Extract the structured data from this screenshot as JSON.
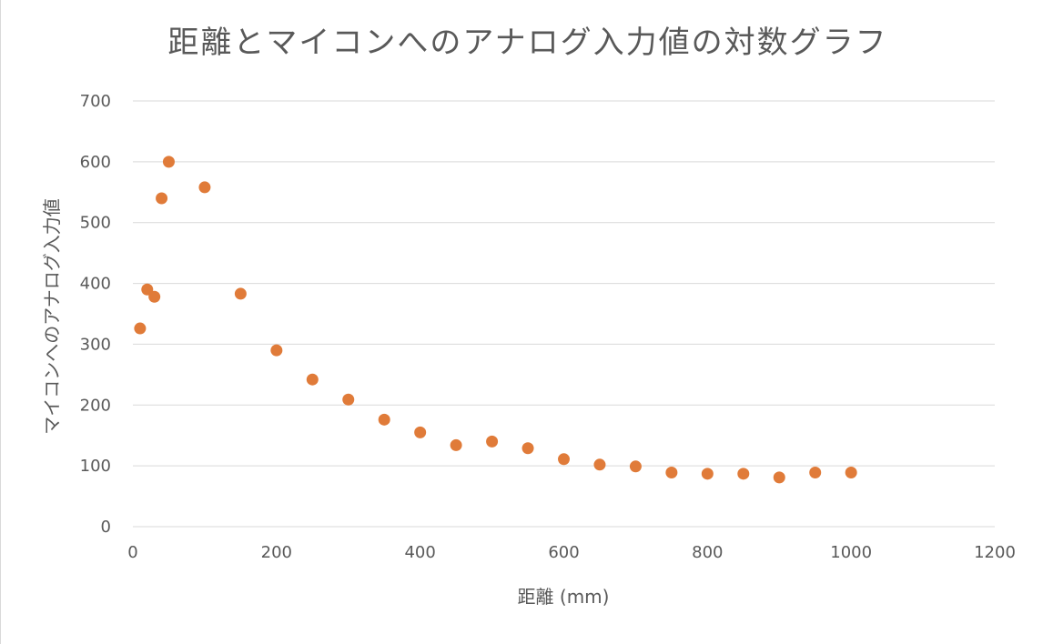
{
  "chart_data": {
    "type": "scatter",
    "title": "距離とマイコンへのアナログ入力値の対数グラフ",
    "xlabel": "距離 (mm)",
    "ylabel": "マイコンへのアナログ入力値",
    "xlim": [
      0,
      1200
    ],
    "ylim": [
      0,
      700
    ],
    "xticks": [
      0,
      200,
      400,
      600,
      800,
      1000,
      1200
    ],
    "yticks": [
      0,
      100,
      200,
      300,
      400,
      500,
      600,
      700
    ],
    "grid": "horizontal",
    "marker_color": "#E07B39",
    "x": [
      10,
      20,
      30,
      40,
      50,
      100,
      150,
      200,
      250,
      300,
      350,
      400,
      450,
      500,
      550,
      600,
      650,
      700,
      750,
      800,
      850,
      900,
      950,
      1000
    ],
    "y": [
      326,
      390,
      378,
      540,
      600,
      558,
      383,
      290,
      242,
      209,
      176,
      155,
      134,
      140,
      129,
      111,
      102,
      99,
      89,
      87,
      87,
      81,
      89,
      89
    ]
  }
}
